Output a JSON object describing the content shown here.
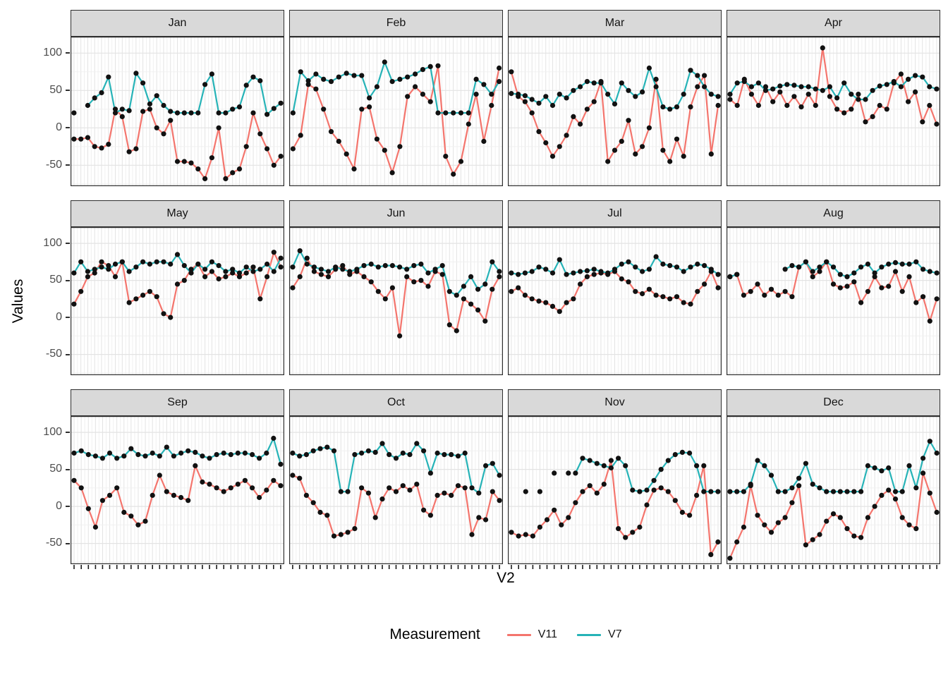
{
  "chart_data": {
    "type": "line",
    "xlabel": "V2",
    "ylabel": "Values",
    "ylim": [
      -78,
      122
    ],
    "y_ticks": [
      100,
      50,
      0,
      -50
    ],
    "grid": true,
    "legend": {
      "title": "Measurement",
      "position": "bottom",
      "entries": [
        {
          "label": "V11",
          "color": "#f4756d"
        },
        {
          "label": "V7",
          "color": "#26b3b7"
        }
      ]
    },
    "point_color": "#111111",
    "facets": [
      {
        "label": "Jan",
        "days": 31,
        "V7": [
          20,
          null,
          30,
          40,
          47,
          68,
          20,
          25,
          23,
          73,
          60,
          32,
          43,
          30,
          22,
          20,
          20,
          20,
          20,
          58,
          72,
          20,
          20,
          25,
          28,
          57,
          68,
          63,
          18,
          26,
          33
        ],
        "V11": [
          -15,
          -15,
          -13,
          -25,
          -27,
          -22,
          25,
          15,
          -32,
          -28,
          22,
          25,
          0,
          -8,
          10,
          -45,
          -45,
          -47,
          -55,
          -68,
          -40,
          0,
          -68,
          -60,
          -55,
          -25,
          20,
          -8,
          -28,
          -50,
          -38
        ]
      },
      {
        "label": "Feb",
        "days": 28,
        "V7": [
          20,
          75,
          63,
          72,
          65,
          62,
          68,
          73,
          70,
          70,
          40,
          55,
          88,
          62,
          65,
          68,
          72,
          78,
          82,
          20,
          20,
          20,
          20,
          20,
          65,
          58,
          45,
          62
        ],
        "V11": [
          -28,
          -10,
          58,
          52,
          25,
          -5,
          -18,
          -35,
          -55,
          25,
          28,
          -15,
          -30,
          -60,
          -25,
          42,
          55,
          45,
          35,
          83,
          -38,
          -62,
          -45,
          5,
          45,
          -18,
          30,
          80
        ]
      },
      {
        "label": "Mar",
        "days": 31,
        "V7": [
          46,
          45,
          43,
          38,
          33,
          42,
          30,
          45,
          40,
          50,
          55,
          62,
          60,
          60,
          45,
          32,
          60,
          50,
          42,
          48,
          80,
          55,
          28,
          25,
          28,
          45,
          77,
          70,
          55,
          45,
          42
        ],
        "V11": [
          75,
          42,
          35,
          20,
          -5,
          -20,
          -38,
          -25,
          -10,
          15,
          5,
          25,
          35,
          62,
          -45,
          -30,
          -18,
          10,
          -35,
          -25,
          0,
          65,
          -30,
          -45,
          -15,
          -38,
          28,
          55,
          70,
          -35,
          30
        ]
      },
      {
        "label": "Apr",
        "days": 30,
        "V7": [
          45,
          60,
          62,
          55,
          60,
          50,
          52,
          56,
          58,
          57,
          55,
          55,
          52,
          50,
          55,
          40,
          60,
          45,
          38,
          38,
          50,
          56,
          58,
          62,
          55,
          65,
          70,
          68,
          55,
          52
        ],
        "V11": [
          38,
          30,
          65,
          45,
          30,
          55,
          35,
          48,
          30,
          42,
          28,
          45,
          30,
          107,
          42,
          25,
          20,
          25,
          45,
          8,
          15,
          30,
          25,
          60,
          72,
          35,
          48,
          8,
          30,
          5
        ]
      },
      {
        "label": "May",
        "days": 31,
        "V7": [
          60,
          75,
          62,
          65,
          68,
          65,
          72,
          75,
          62,
          68,
          75,
          72,
          75,
          75,
          72,
          85,
          70,
          60,
          72,
          65,
          75,
          70,
          62,
          65,
          60,
          68,
          62,
          65,
          72,
          62,
          80
        ],
        "V11": [
          18,
          35,
          55,
          60,
          75,
          70,
          55,
          75,
          20,
          25,
          30,
          35,
          28,
          5,
          0,
          45,
          50,
          65,
          72,
          55,
          62,
          52,
          55,
          60,
          55,
          60,
          68,
          25,
          55,
          88,
          68
        ]
      },
      {
        "label": "Jun",
        "days": 30,
        "V7": [
          68,
          90,
          72,
          68,
          65,
          62,
          68,
          65,
          62,
          65,
          70,
          72,
          68,
          70,
          70,
          68,
          65,
          70,
          72,
          60,
          65,
          70,
          35,
          30,
          42,
          55,
          38,
          45,
          75,
          62
        ],
        "V11": [
          40,
          55,
          80,
          62,
          58,
          55,
          65,
          70,
          58,
          62,
          55,
          48,
          35,
          25,
          40,
          -25,
          55,
          48,
          50,
          42,
          62,
          58,
          -10,
          -18,
          25,
          18,
          10,
          -5,
          38,
          55
        ]
      },
      {
        "label": "Jul",
        "days": 31,
        "V7": [
          60,
          58,
          60,
          62,
          68,
          65,
          60,
          78,
          58,
          60,
          62,
          63,
          65,
          62,
          60,
          65,
          72,
          75,
          68,
          62,
          65,
          82,
          72,
          70,
          68,
          62,
          68,
          72,
          70,
          65,
          58
        ],
        "V11": [
          35,
          40,
          30,
          25,
          22,
          20,
          15,
          8,
          20,
          25,
          45,
          55,
          58,
          60,
          58,
          62,
          52,
          48,
          35,
          32,
          38,
          30,
          28,
          25,
          28,
          20,
          18,
          35,
          45,
          62,
          40
        ]
      },
      {
        "label": "Aug",
        "days": 31,
        "V7": [
          55,
          58,
          null,
          null,
          null,
          null,
          null,
          null,
          65,
          70,
          68,
          75,
          62,
          68,
          75,
          68,
          58,
          55,
          60,
          68,
          72,
          60,
          68,
          72,
          74,
          72,
          72,
          75,
          65,
          62,
          60
        ],
        "V11": [
          55,
          58,
          30,
          35,
          45,
          30,
          38,
          30,
          35,
          28,
          68,
          75,
          55,
          62,
          75,
          45,
          40,
          42,
          48,
          20,
          35,
          55,
          40,
          42,
          62,
          35,
          55,
          20,
          28,
          -5,
          25
        ]
      },
      {
        "label": "Sep",
        "days": 30,
        "V7": [
          72,
          75,
          70,
          68,
          65,
          72,
          65,
          68,
          78,
          70,
          68,
          72,
          68,
          80,
          68,
          72,
          75,
          73,
          68,
          65,
          70,
          72,
          70,
          72,
          72,
          70,
          65,
          72,
          92,
          57
        ],
        "V11": [
          35,
          25,
          -3,
          -28,
          8,
          15,
          25,
          -8,
          -13,
          -25,
          -20,
          15,
          42,
          20,
          15,
          12,
          8,
          55,
          33,
          30,
          25,
          20,
          25,
          30,
          35,
          25,
          12,
          22,
          35,
          28
        ]
      },
      {
        "label": "Oct",
        "days": 31,
        "V7": [
          72,
          68,
          70,
          75,
          78,
          80,
          75,
          20,
          20,
          70,
          72,
          75,
          73,
          85,
          70,
          65,
          72,
          70,
          85,
          75,
          45,
          72,
          70,
          70,
          68,
          72,
          25,
          18,
          55,
          58,
          42
        ],
        "V11": [
          42,
          38,
          15,
          5,
          -8,
          -12,
          -40,
          -38,
          -35,
          -30,
          25,
          18,
          -15,
          10,
          25,
          20,
          28,
          22,
          30,
          -5,
          -12,
          15,
          18,
          15,
          28,
          25,
          -38,
          -15,
          -18,
          20,
          8
        ]
      },
      {
        "label": "Nov",
        "days": 30,
        "V7": [
          null,
          null,
          null,
          null,
          null,
          null,
          null,
          null,
          null,
          45,
          65,
          62,
          58,
          55,
          52,
          65,
          55,
          22,
          20,
          22,
          35,
          50,
          62,
          70,
          73,
          72,
          55,
          20,
          20,
          20
        ],
        "dots_only": [
          [
            3,
            20
          ],
          [
            5,
            20
          ],
          [
            7,
            45
          ],
          [
            9,
            45
          ]
        ],
        "V11": [
          -35,
          -40,
          -38,
          -40,
          -28,
          -18,
          -5,
          -25,
          -15,
          5,
          20,
          28,
          18,
          30,
          62,
          -30,
          -42,
          -35,
          -28,
          2,
          22,
          25,
          20,
          8,
          -8,
          -12,
          15,
          55,
          -65,
          -48
        ]
      },
      {
        "label": "Dec",
        "days": 31,
        "V7": [
          20,
          20,
          20,
          30,
          62,
          55,
          42,
          20,
          20,
          25,
          38,
          58,
          30,
          25,
          20,
          20,
          20,
          20,
          20,
          20,
          55,
          52,
          48,
          52,
          20,
          20,
          55,
          25,
          65,
          88,
          72
        ],
        "V11": [
          -70,
          -48,
          -28,
          28,
          -12,
          -25,
          -35,
          -22,
          -15,
          5,
          28,
          -52,
          -45,
          -38,
          -20,
          -10,
          -15,
          -30,
          -40,
          -42,
          -15,
          0,
          15,
          22,
          10,
          -15,
          -25,
          -30,
          45,
          18,
          -8
        ]
      }
    ],
    "style": {
      "panel_bg": "#ffffff",
      "grid_major": "#e3e3e3",
      "grid_minor": "#f0f0f0",
      "panel_border": "#2f2f2f",
      "strip_bg": "#d9d9d9"
    }
  }
}
